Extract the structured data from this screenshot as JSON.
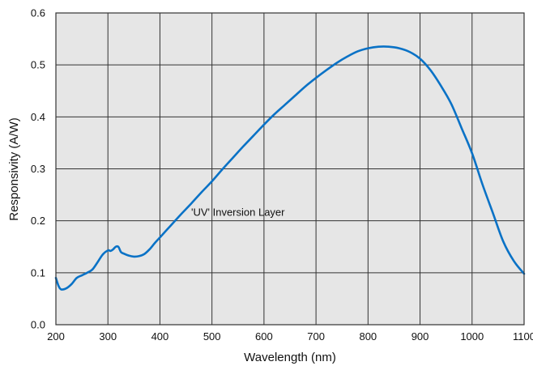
{
  "chart_data": {
    "type": "line",
    "title": "",
    "xlabel": "Wavelength (nm)",
    "ylabel": "Responsivity (A/W)",
    "xlim": [
      200,
      1100
    ],
    "ylim": [
      0,
      0.6
    ],
    "x_ticks": [
      200,
      300,
      400,
      500,
      600,
      700,
      800,
      900,
      1000,
      1100
    ],
    "y_ticks": [
      0.0,
      0.1,
      0.2,
      0.3,
      0.4,
      0.5,
      0.6
    ],
    "x_tick_labels": [
      "200",
      "300",
      "400",
      "500",
      "600",
      "700",
      "800",
      "900",
      "1000",
      "1100"
    ],
    "y_tick_labels": [
      "0.0",
      "0.1",
      "0.2",
      "0.3",
      "0.4",
      "0.5",
      "0.6"
    ],
    "grid": true,
    "legend": "none",
    "annotation": {
      "text": "'UV' Inversion Layer",
      "x": 460,
      "y": 0.21
    },
    "series": [
      {
        "color": "#0a72c6",
        "x": [
          200,
          205,
          210,
          220,
          230,
          240,
          250,
          260,
          270,
          280,
          290,
          300,
          305,
          310,
          315,
          320,
          325,
          330,
          340,
          350,
          360,
          370,
          380,
          390,
          400,
          420,
          440,
          460,
          480,
          500,
          520,
          540,
          560,
          580,
          600,
          620,
          640,
          660,
          680,
          700,
          720,
          740,
          760,
          780,
          800,
          820,
          840,
          860,
          880,
          900,
          920,
          940,
          960,
          980,
          1000,
          1020,
          1040,
          1060,
          1080,
          1100
        ],
        "y": [
          0.09,
          0.075,
          0.068,
          0.07,
          0.078,
          0.09,
          0.095,
          0.1,
          0.106,
          0.12,
          0.135,
          0.143,
          0.142,
          0.145,
          0.15,
          0.15,
          0.14,
          0.137,
          0.133,
          0.131,
          0.132,
          0.136,
          0.145,
          0.157,
          0.168,
          0.19,
          0.212,
          0.233,
          0.255,
          0.276,
          0.299,
          0.321,
          0.343,
          0.364,
          0.385,
          0.405,
          0.423,
          0.441,
          0.459,
          0.475,
          0.49,
          0.504,
          0.516,
          0.526,
          0.532,
          0.535,
          0.535,
          0.532,
          0.525,
          0.512,
          0.49,
          0.46,
          0.425,
          0.378,
          0.33,
          0.27,
          0.215,
          0.16,
          0.123,
          0.098
        ]
      }
    ]
  }
}
